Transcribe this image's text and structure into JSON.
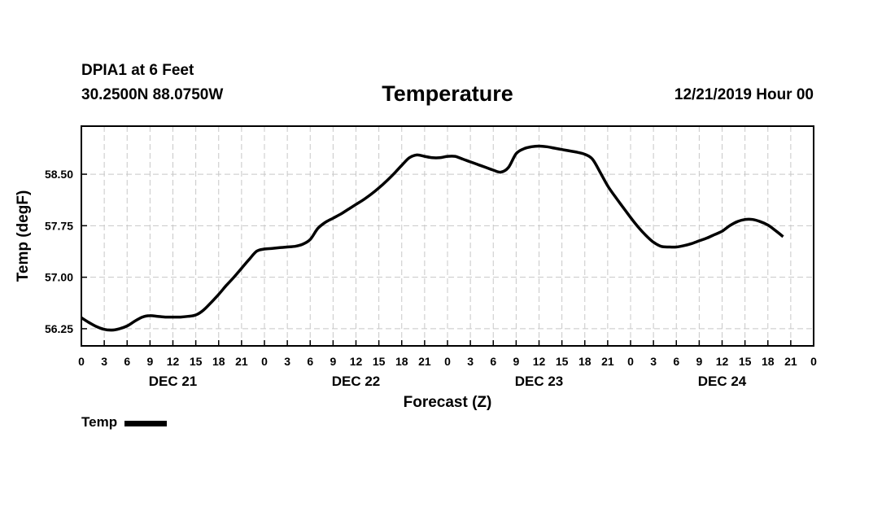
{
  "header": {
    "station": "DPIA1 at 6 Feet",
    "coords": "30.2500N 88.0750W",
    "title": "Temperature",
    "valid_time": "12/21/2019 Hour 00"
  },
  "legend": {
    "label": "Temp"
  },
  "colors": {
    "line": "#000000",
    "grid": "#c8c8c8",
    "axis": "#000000"
  },
  "chart_data": {
    "type": "line",
    "title": "Temperature",
    "xlabel": "Forecast (Z)",
    "ylabel": "Temp (degF)",
    "x_unit": "hours since 12/21/2019 00Z",
    "xlim": [
      0,
      96
    ],
    "ylim": [
      56.0,
      59.2
    ],
    "y_ticks": [
      "56.25",
      "57.00",
      "57.75",
      "58.50"
    ],
    "x_tick_hours": [
      0,
      3,
      6,
      9,
      12,
      15,
      18,
      21,
      24,
      27,
      30,
      33,
      36,
      39,
      42,
      45,
      48,
      51,
      54,
      57,
      60,
      63,
      66,
      69,
      72,
      75,
      78,
      81,
      84,
      87,
      90,
      93,
      96
    ],
    "x_tick_labels": [
      "0",
      "3",
      "6",
      "9",
      "12",
      "15",
      "18",
      "21",
      "0",
      "3",
      "6",
      "9",
      "12",
      "15",
      "18",
      "21",
      "0",
      "3",
      "6",
      "9",
      "12",
      "15",
      "18",
      "21",
      "0",
      "3",
      "6",
      "9",
      "12",
      "15",
      "18",
      "21",
      "0"
    ],
    "day_labels": [
      {
        "label": "DEC 21",
        "hour": 12
      },
      {
        "label": "DEC 22",
        "hour": 36
      },
      {
        "label": "DEC 23",
        "hour": 60
      },
      {
        "label": "DEC 24",
        "hour": 84
      }
    ],
    "series": [
      {
        "name": "Temp",
        "points": [
          [
            0,
            56.41
          ],
          [
            1,
            56.34
          ],
          [
            2,
            56.28
          ],
          [
            3,
            56.24
          ],
          [
            4,
            56.23
          ],
          [
            5,
            56.25
          ],
          [
            6,
            56.29
          ],
          [
            7,
            56.36
          ],
          [
            8,
            56.42
          ],
          [
            9,
            56.44
          ],
          [
            10,
            56.43
          ],
          [
            11,
            56.42
          ],
          [
            12,
            56.42
          ],
          [
            13,
            56.42
          ],
          [
            14,
            56.43
          ],
          [
            15,
            56.45
          ],
          [
            16,
            56.52
          ],
          [
            17,
            56.63
          ],
          [
            18,
            56.75
          ],
          [
            19,
            56.88
          ],
          [
            20,
            57.0
          ],
          [
            21,
            57.13
          ],
          [
            22,
            57.26
          ],
          [
            23,
            57.38
          ],
          [
            24,
            57.41
          ],
          [
            25,
            57.42
          ],
          [
            26,
            57.43
          ],
          [
            27,
            57.44
          ],
          [
            28,
            57.45
          ],
          [
            29,
            57.48
          ],
          [
            30,
            57.55
          ],
          [
            31,
            57.71
          ],
          [
            32,
            57.8
          ],
          [
            33,
            57.86
          ],
          [
            34,
            57.92
          ],
          [
            35,
            57.99
          ],
          [
            36,
            58.06
          ],
          [
            37,
            58.13
          ],
          [
            38,
            58.21
          ],
          [
            39,
            58.3
          ],
          [
            40,
            58.4
          ],
          [
            41,
            58.51
          ],
          [
            42,
            58.63
          ],
          [
            43,
            58.74
          ],
          [
            44,
            58.78
          ],
          [
            45,
            58.76
          ],
          [
            46,
            58.74
          ],
          [
            47,
            58.74
          ],
          [
            48,
            58.76
          ],
          [
            49,
            58.76
          ],
          [
            50,
            58.72
          ],
          [
            51,
            58.68
          ],
          [
            52,
            58.64
          ],
          [
            53,
            58.6
          ],
          [
            54,
            58.56
          ],
          [
            55,
            58.53
          ],
          [
            56,
            58.6
          ],
          [
            57,
            58.8
          ],
          [
            58,
            58.87
          ],
          [
            59,
            58.9
          ],
          [
            60,
            58.91
          ],
          [
            61,
            58.9
          ],
          [
            62,
            58.88
          ],
          [
            63,
            58.86
          ],
          [
            64,
            58.84
          ],
          [
            65,
            58.82
          ],
          [
            66,
            58.79
          ],
          [
            67,
            58.72
          ],
          [
            68,
            58.53
          ],
          [
            69,
            58.33
          ],
          [
            70,
            58.17
          ],
          [
            71,
            58.02
          ],
          [
            72,
            57.87
          ],
          [
            73,
            57.73
          ],
          [
            74,
            57.61
          ],
          [
            75,
            57.51
          ],
          [
            76,
            57.45
          ],
          [
            77,
            57.44
          ],
          [
            78,
            57.44
          ],
          [
            79,
            57.46
          ],
          [
            80,
            57.49
          ],
          [
            81,
            57.53
          ],
          [
            82,
            57.57
          ],
          [
            83,
            57.62
          ],
          [
            84,
            57.67
          ],
          [
            85,
            57.75
          ],
          [
            86,
            57.81
          ],
          [
            87,
            57.84
          ],
          [
            88,
            57.84
          ],
          [
            89,
            57.81
          ],
          [
            90,
            57.76
          ],
          [
            91,
            57.68
          ],
          [
            92,
            57.59
          ]
        ]
      }
    ]
  }
}
